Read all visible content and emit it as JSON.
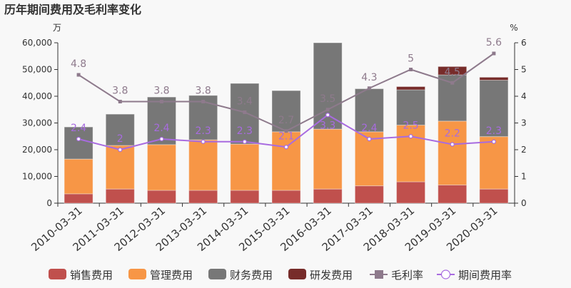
{
  "chart_data": {
    "type": "bar",
    "title": "历年期间费用及毛利率变化",
    "left_unit": "万",
    "right_unit": "%",
    "categories": [
      "2010-03-31",
      "2011-03-31",
      "2012-03-31",
      "2013-03-31",
      "2014-03-31",
      "2015-03-31",
      "2016-03-31",
      "2017-03-31",
      "2018-03-31",
      "2019-03-31",
      "2020-03-31"
    ],
    "left_axis": {
      "min": 0,
      "max": 60000,
      "ticks": [
        "0",
        "10,000",
        "20,000",
        "30,000",
        "40,000",
        "50,000",
        "60,000"
      ]
    },
    "right_axis": {
      "min": 0,
      "max": 6,
      "ticks": [
        "0",
        "1",
        "2",
        "3",
        "4",
        "5",
        "6"
      ]
    },
    "stacked": true,
    "series": [
      {
        "name": "销售费用",
        "kind": "bar",
        "color": "#c0504d",
        "values": [
          3500,
          5300,
          4800,
          4800,
          4800,
          4800,
          5300,
          6500,
          8000,
          6800,
          5300
        ]
      },
      {
        "name": "管理费用",
        "kind": "bar",
        "color": "#f79646",
        "values": [
          13000,
          16300,
          17100,
          18900,
          17300,
          21900,
          22400,
          20200,
          21200,
          23900,
          19600
        ]
      },
      {
        "name": "财务费用",
        "kind": "bar",
        "color": "#777777",
        "values": [
          12000,
          11700,
          17800,
          16600,
          22700,
          15400,
          32300,
          16100,
          13200,
          17300,
          21100
        ]
      },
      {
        "name": "研发费用",
        "kind": "bar",
        "color": "#772c2a",
        "values": [
          0,
          0,
          0,
          0,
          0,
          0,
          0,
          0,
          1200,
          3100,
          1100
        ]
      },
      {
        "name": "毛利率",
        "kind": "line",
        "axis": "right",
        "color": "#8e7a8c",
        "marker": "square",
        "values": [
          4.8,
          3.8,
          3.8,
          3.8,
          3.4,
          2.7,
          3.5,
          4.3,
          5,
          4.5,
          5.6
        ]
      },
      {
        "name": "期间费用率",
        "kind": "line",
        "axis": "right",
        "color": "#a86be0",
        "marker": "circle",
        "values": [
          2.4,
          2,
          2.4,
          2.3,
          2.3,
          2.1,
          3.3,
          2.4,
          2.5,
          2.2,
          2.3
        ]
      }
    ],
    "grid": false,
    "legend_position": "bottom"
  }
}
